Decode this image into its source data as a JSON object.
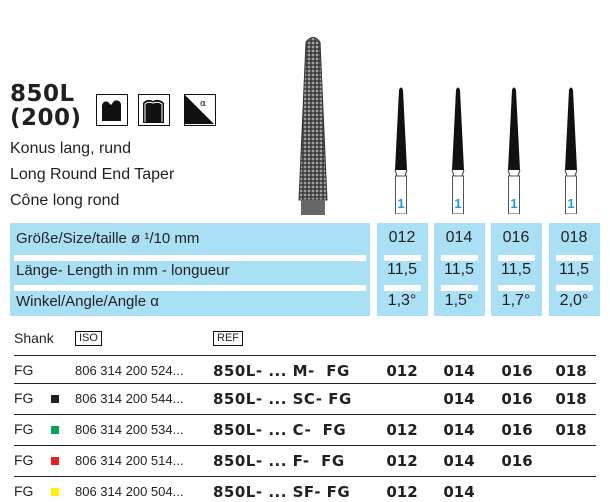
{
  "product": {
    "code": "850L",
    "iso_code": "(200)",
    "names": [
      "Konus lang, rund",
      "Long Round End Taper",
      "Cône long rond"
    ],
    "icons": [
      "tooth-crown-prep-icon",
      "crown-bridge-icon",
      "taper-angle-icon"
    ]
  },
  "instruments": {
    "sizes_marker": [
      "1",
      "1",
      "1",
      "1"
    ],
    "marker_color": "#1e9be0"
  },
  "specs": {
    "size_label": "Größe/Size/taille  ø ¹/10 mm",
    "length_label": "Länge- Length in mm - longueur",
    "angle_label": "Winkel/Angle/Angle α",
    "sizes": [
      "012",
      "014",
      "016",
      "018"
    ],
    "lengths": [
      "11,5",
      "11,5",
      "11,5",
      "11,5"
    ],
    "angles": [
      "1,3°",
      "1,5°",
      "1,7°",
      "2,0°"
    ],
    "panel_color": "#a9e0f6"
  },
  "table": {
    "shank_header": "Shank",
    "iso_header": "ISO",
    "ref_header": "REF",
    "rows": [
      {
        "shank": "FG",
        "color": "",
        "iso": "806 314 200 524...",
        "ref": "850L- ... M-  FG",
        "sizes": [
          "012",
          "014",
          "016",
          "018"
        ]
      },
      {
        "shank": "FG",
        "color": "#231f20",
        "iso": "806 314 200 544...",
        "ref": "850L- ... SC- FG",
        "sizes": [
          "",
          "014",
          "016",
          "018"
        ]
      },
      {
        "shank": "FG",
        "color": "#00a651",
        "iso": "806 314 200 534...",
        "ref": "850L- ... C-  FG",
        "sizes": [
          "012",
          "014",
          "016",
          "018"
        ]
      },
      {
        "shank": "FG",
        "color": "#ed1c24",
        "iso": "806 314 200 514...",
        "ref": "850L- ... F-  FG",
        "sizes": [
          "012",
          "014",
          "016",
          ""
        ]
      },
      {
        "shank": "FG",
        "color": "#fff200",
        "iso": "806 314 200 504...",
        "ref": "850L- ... SF- FG",
        "sizes": [
          "012",
          "014",
          "",
          ""
        ]
      }
    ]
  }
}
